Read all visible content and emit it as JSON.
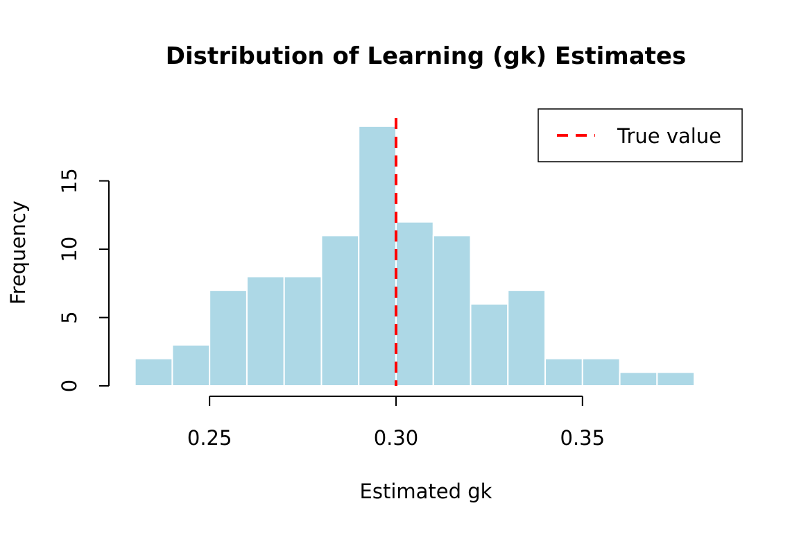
{
  "chart_data": {
    "type": "bar",
    "title": "Distribution of Learning (gk) Estimates",
    "xlabel": "Estimated gk",
    "ylabel": "Frequency",
    "bin_edges": [
      0.23,
      0.24,
      0.25,
      0.26,
      0.27,
      0.28,
      0.29,
      0.3,
      0.31,
      0.32,
      0.33,
      0.34,
      0.35,
      0.36,
      0.37,
      0.38
    ],
    "counts": [
      2,
      3,
      7,
      8,
      8,
      11,
      19,
      12,
      11,
      6,
      7,
      2,
      2,
      1,
      1
    ],
    "xlim": [
      0.223,
      0.393
    ],
    "ylim": [
      0,
      19.5
    ],
    "x_ticks": [
      0.25,
      0.3,
      0.35
    ],
    "x_tick_labels": [
      "0.25",
      "0.30",
      "0.35"
    ],
    "y_ticks": [
      0,
      5,
      10,
      15
    ],
    "y_tick_labels": [
      "0",
      "5",
      "10",
      "15"
    ],
    "reference_line": {
      "x": 0.3,
      "label": "True value",
      "color": "#ff0000",
      "style": "dashed"
    },
    "bar_color": "#add8e6",
    "bar_border_color": "#ffffff",
    "legend": {
      "entries": [
        "True value"
      ],
      "position": "top-right"
    },
    "grid": false
  }
}
